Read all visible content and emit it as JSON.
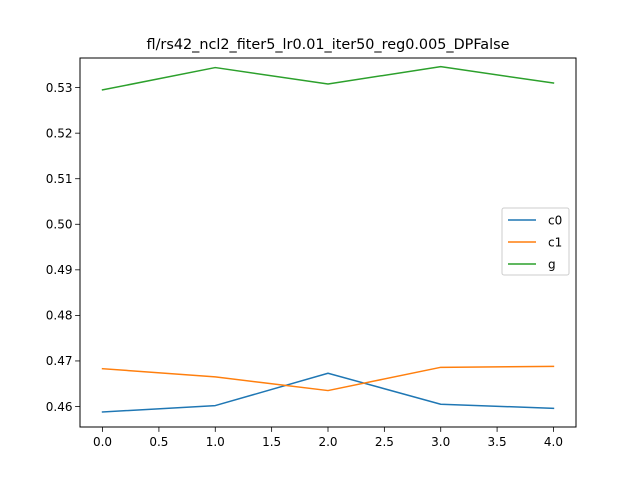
{
  "chart_data": {
    "type": "line",
    "title": "fl/rs42_ncl2_fiter5_lr0.01_iter50_reg0.005_DPFalse",
    "xlabel": "",
    "ylabel": "",
    "x": [
      0,
      1,
      2,
      3,
      4
    ],
    "xlim": [
      -0.2,
      4.2
    ],
    "ylim": [
      0.4555,
      0.5365
    ],
    "xticks": [
      0.0,
      0.5,
      1.0,
      1.5,
      2.0,
      2.5,
      3.0,
      3.5,
      4.0
    ],
    "yticks": [
      0.46,
      0.47,
      0.48,
      0.49,
      0.5,
      0.51,
      0.52,
      0.53
    ],
    "xtick_labels": [
      "0.0",
      "0.5",
      "1.0",
      "1.5",
      "2.0",
      "2.5",
      "3.0",
      "3.5",
      "4.0"
    ],
    "ytick_labels": [
      "0.46",
      "0.47",
      "0.48",
      "0.49",
      "0.50",
      "0.51",
      "0.52",
      "0.53"
    ],
    "grid": false,
    "legend_position": "center-right",
    "series": [
      {
        "name": "c0",
        "color": "#1f77b4",
        "values": [
          0.4588,
          0.4602,
          0.4673,
          0.4605,
          0.4596
        ]
      },
      {
        "name": "c1",
        "color": "#ff7f0e",
        "values": [
          0.4683,
          0.4665,
          0.4635,
          0.4686,
          0.4688
        ]
      },
      {
        "name": "g",
        "color": "#2ca02c",
        "values": [
          0.5295,
          0.5344,
          0.5308,
          0.5346,
          0.531
        ]
      }
    ]
  }
}
